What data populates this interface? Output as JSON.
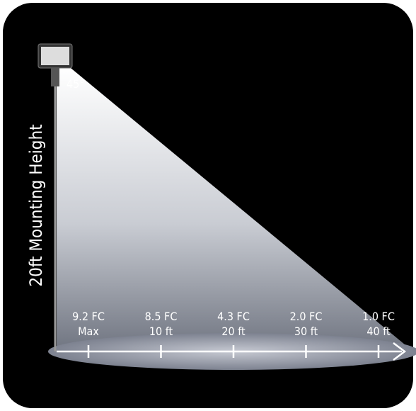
{
  "vertical_label": "20ft Mounting Height",
  "angle_label": "45°",
  "points": [
    {
      "illuminance": "9.2 FC",
      "distance": "Max"
    },
    {
      "illuminance": "8.5 FC",
      "distance": "10 ft"
    },
    {
      "illuminance": "4.3 FC",
      "distance": "20 ft"
    },
    {
      "illuminance": "2.0 FC",
      "distance": "30 ft"
    },
    {
      "illuminance": "1.0 FC",
      "distance": "40 ft"
    }
  ]
}
